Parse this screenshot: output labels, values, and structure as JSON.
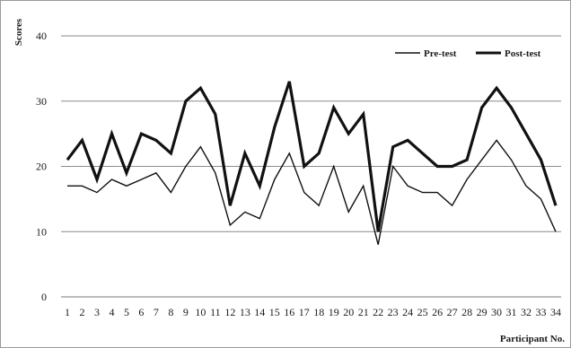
{
  "chart_data": {
    "type": "line",
    "title": "",
    "xlabel": "Participant No.",
    "ylabel": "Scores",
    "ylim": [
      0,
      40
    ],
    "yticks": [
      0,
      10,
      20,
      30,
      40
    ],
    "grid": true,
    "legend_position": "top-right",
    "categories": [
      "1",
      "2",
      "3",
      "4",
      "5",
      "6",
      "7",
      "8",
      "9",
      "10",
      "11",
      "12",
      "13",
      "14",
      "15",
      "16",
      "17",
      "18",
      "19",
      "20",
      "21",
      "22",
      "23",
      "24",
      "25",
      "26",
      "27",
      "28",
      "29",
      "30",
      "31",
      "32",
      "33",
      "34"
    ],
    "series": [
      {
        "name": "Pre-test",
        "color": "#111111",
        "style": "thin",
        "values": [
          17,
          17,
          16,
          18,
          17,
          18,
          19,
          16,
          20,
          23,
          19,
          11,
          13,
          12,
          18,
          22,
          16,
          14,
          20,
          13,
          17,
          8,
          20,
          17,
          16,
          16,
          14,
          18,
          21,
          24,
          21,
          17,
          15,
          10
        ]
      },
      {
        "name": "Post-test",
        "color": "#111111",
        "style": "thick",
        "values": [
          21,
          24,
          18,
          25,
          19,
          25,
          24,
          22,
          30,
          32,
          28,
          14,
          22,
          17,
          26,
          33,
          20,
          22,
          29,
          25,
          28,
          10,
          23,
          24,
          22,
          20,
          20,
          21,
          29,
          32,
          29,
          25,
          21,
          14
        ]
      }
    ]
  }
}
